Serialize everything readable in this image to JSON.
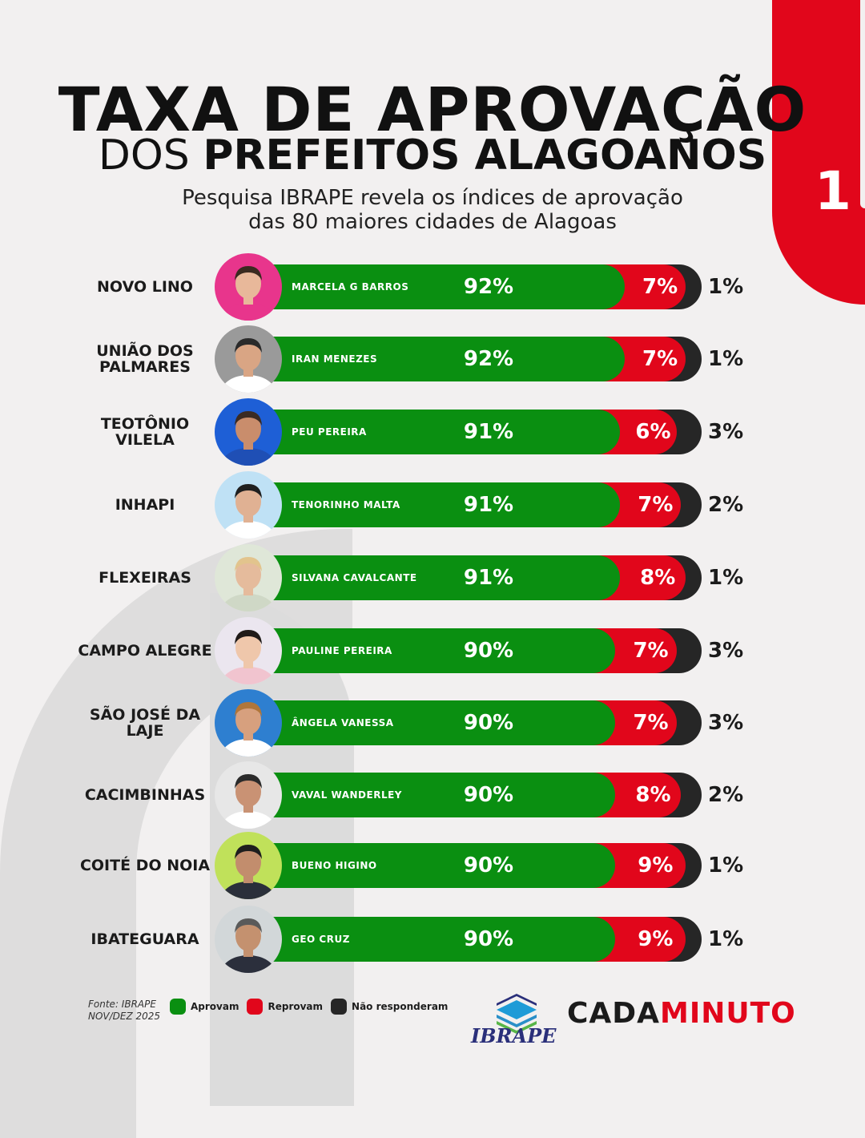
{
  "header": {
    "title_line1": "TAXA DE APROVAÇÃO",
    "title_line2_light": "DOS",
    "title_line2_bold": "PREFEITOS ALAGOANOS",
    "subtitle_line1": "Pesquisa IBRAPE revela os índices de aprovação",
    "subtitle_line2": "das 80 maiores cidades de Alagoas",
    "page_number": "1"
  },
  "colors": {
    "approve": "#0a8f11",
    "disapprove": "#e1061b",
    "no_answer": "#262626"
  },
  "chart_data": {
    "type": "bar",
    "stacked": true,
    "orientation": "horizontal",
    "categories": [
      "NOVO LINO",
      "UNIÃO DOS PALMARES",
      "TEOTÔNIO VILELA",
      "INHAPI",
      "FLEXEIRAS",
      "CAMPO ALEGRE",
      "SÃO JOSÉ DA LAJE",
      "CACIMBINHAS",
      "COITÉ DO NOIA",
      "IBATEGUARA"
    ],
    "mayors": [
      "MARCELA G BARROS",
      "IRAN MENEZES",
      "PEU PEREIRA",
      "TENORINHO MALTA",
      "SILVANA CAVALCANTE",
      "PAULINE PEREIRA",
      "ÂNGELA VANESSA",
      "VAVAL WANDERLEY",
      "BUENO HIGINO",
      "GEO CRUZ"
    ],
    "series": [
      {
        "name": "Aprovam",
        "values": [
          92,
          92,
          91,
          91,
          91,
          90,
          90,
          90,
          90,
          90
        ],
        "labels": [
          "92%",
          "92%",
          "91%",
          "91%",
          "91%",
          "90%",
          "90%",
          "90%",
          "90%",
          "90%"
        ]
      },
      {
        "name": "Reprovam",
        "values": [
          7,
          7,
          6,
          7,
          8,
          7,
          7,
          8,
          9,
          9
        ],
        "labels": [
          "7%",
          "7%",
          "6%",
          "7%",
          "8%",
          "7%",
          "7%",
          "8%",
          "9%",
          "9%"
        ]
      },
      {
        "name": "Não responderam",
        "values": [
          1,
          1,
          3,
          2,
          1,
          3,
          3,
          2,
          1,
          1
        ],
        "labels": [
          "1%",
          "1%",
          "3%",
          "2%",
          "1%",
          "3%",
          "3%",
          "2%",
          "1%",
          "1%"
        ]
      }
    ]
  },
  "rows": [
    {
      "city": "NOVO LINO",
      "mayor": "MARCELA G BARROS",
      "approve": "92%",
      "disapprove": "7%",
      "no_answer": "1%"
    },
    {
      "city": "UNIÃO DOS PALMARES",
      "mayor": "IRAN MENEZES",
      "approve": "92%",
      "disapprove": "7%",
      "no_answer": "1%"
    },
    {
      "city": "TEOTÔNIO VILELA",
      "mayor": "PEU PEREIRA",
      "approve": "91%",
      "disapprove": "6%",
      "no_answer": "3%"
    },
    {
      "city": "INHAPI",
      "mayor": "TENORINHO MALTA",
      "approve": "91%",
      "disapprove": "7%",
      "no_answer": "2%"
    },
    {
      "city": "FLEXEIRAS",
      "mayor": "SILVANA CAVALCANTE",
      "approve": "91%",
      "disapprove": "8%",
      "no_answer": "1%"
    },
    {
      "city": "CAMPO ALEGRE",
      "mayor": "PAULINE PEREIRA",
      "approve": "90%",
      "disapprove": "7%",
      "no_answer": "3%"
    },
    {
      "city": "SÃO JOSÉ DA LAJE",
      "mayor": "ÂNGELA VANESSA",
      "approve": "90%",
      "disapprove": "7%",
      "no_answer": "3%"
    },
    {
      "city": "CACIMBINHAS",
      "mayor": "VAVAL WANDERLEY",
      "approve": "90%",
      "disapprove": "8%",
      "no_answer": "2%"
    },
    {
      "city": "COITÉ DO NOIA",
      "mayor": "BUENO HIGINO",
      "approve": "90%",
      "disapprove": "9%",
      "no_answer": "1%"
    },
    {
      "city": "IBATEGUARA",
      "mayor": "GEO CRUZ",
      "approve": "90%",
      "disapprove": "9%",
      "no_answer": "1%"
    }
  ],
  "footer": {
    "source": "Fonte: IBRAPE",
    "period": "NOV/DEZ 2025",
    "legend": [
      {
        "label": "Aprovam",
        "color": "#0a8f11"
      },
      {
        "label": "Reprovam",
        "color": "#e1061b"
      },
      {
        "label": "Não responderam",
        "color": "#262626"
      }
    ],
    "ibrape_logo_text": "IBRAPE",
    "brand_part1": "CADA",
    "brand_part2": "MINUTO"
  }
}
